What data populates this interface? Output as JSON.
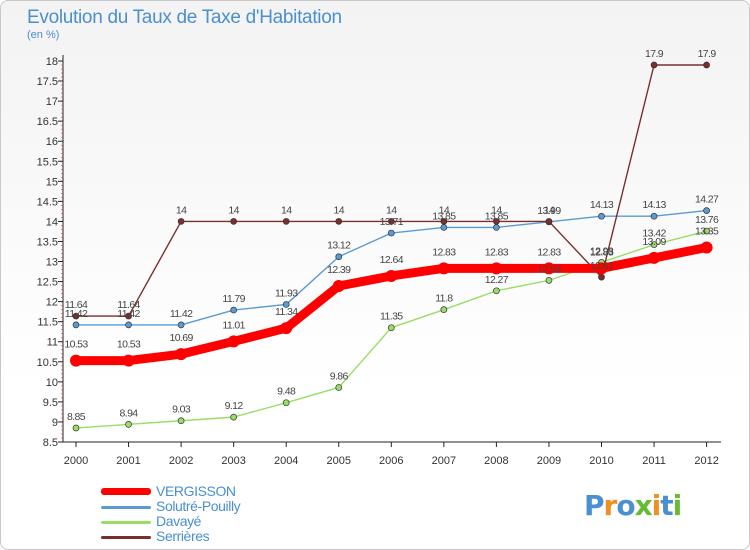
{
  "header": {
    "title": "Evolution du Taux de Taxe d'Habitation",
    "subtitle": "(en %)"
  },
  "chart_data": {
    "type": "line",
    "title": "Evolution du Taux de Taxe d'Habitation",
    "ylabel": "(en %)",
    "x": [
      "2000",
      "2001",
      "2002",
      "2003",
      "2004",
      "2005",
      "2006",
      "2007",
      "2008",
      "2009",
      "2010",
      "2011",
      "2012"
    ],
    "ylim": [
      8.5,
      18
    ],
    "yticks": [
      "8.5",
      "9",
      "9.5",
      "10",
      "10.5",
      "11",
      "11.5",
      "12",
      "12.5",
      "13",
      "13.5",
      "14",
      "14.5",
      "15",
      "15.5",
      "16",
      "16.5",
      "17",
      "17.5",
      "18"
    ],
    "grid": false,
    "legend": "bottom-left",
    "series": [
      {
        "name": "VERGISSON",
        "color": "#ff0000",
        "values": [
          10.53,
          10.53,
          10.69,
          11.01,
          11.34,
          12.39,
          12.64,
          12.83,
          12.83,
          12.83,
          12.83,
          13.09,
          13.35
        ],
        "labels": [
          "10.53",
          "10.53",
          "10.69",
          "11.01",
          "11.34",
          "12.39",
          "12.64",
          "12.83",
          "12.83",
          "12.83",
          "12.83",
          "13.09",
          "13.35"
        ]
      },
      {
        "name": "Solutré-Pouilly",
        "color": "#5a9bd4",
        "values": [
          11.42,
          11.42,
          11.42,
          11.79,
          11.93,
          13.12,
          13.71,
          13.85,
          13.85,
          13.99,
          14.13,
          14.13,
          14.27
        ],
        "labels": [
          "11.42",
          "11.42",
          "11.42",
          "11.79",
          "11.93",
          "13.12",
          "13.71",
          "13.85",
          "13.85",
          "13.99",
          "14.13",
          "14.13",
          "14.27"
        ]
      },
      {
        "name": "Davayé",
        "color": "#99dd66",
        "values": [
          8.85,
          8.94,
          9.03,
          9.12,
          9.48,
          9.86,
          11.35,
          11.8,
          12.27,
          12.53,
          12.98,
          13.42,
          13.76
        ],
        "labels": [
          "8.85",
          "8.94",
          "9.03",
          "9.12",
          "9.48",
          "9.86",
          "11.35",
          "11.8",
          "12.27",
          "12.53",
          "12.98",
          "13.42",
          "13.76"
        ]
      },
      {
        "name": "Serrières",
        "color": "#7a2e2e",
        "values": [
          11.64,
          11.64,
          14,
          14,
          14,
          14,
          14,
          14,
          14,
          14,
          12.61,
          17.9,
          17.9
        ],
        "labels": [
          "11.64",
          "11.64",
          "14",
          "14",
          "14",
          "14",
          "14",
          "14",
          "14",
          "14",
          "12.61",
          "17.9",
          "17.9"
        ]
      }
    ]
  },
  "logo": {
    "text": "Proxiti"
  }
}
